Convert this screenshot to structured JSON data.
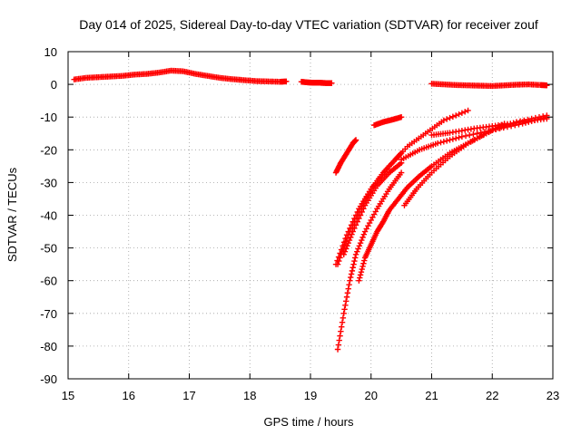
{
  "chart_data": {
    "type": "scatter",
    "title": "Day 014 of 2025, Sidereal Day-to-day VTEC variation (SDTVAR) for receiver zouf",
    "xlabel": "GPS time / hours",
    "ylabel": "SDTVAR / TECUs",
    "xlim": [
      15,
      23
    ],
    "ylim": [
      -90,
      10
    ],
    "xticks": [
      "15",
      "16",
      "17",
      "18",
      "19",
      "20",
      "21",
      "22",
      "23"
    ],
    "yticks": [
      "10",
      "0",
      "-10",
      "-20",
      "-30",
      "-40",
      "-50",
      "-60",
      "-70",
      "-80",
      "-90"
    ],
    "grid": true,
    "marker": "plus",
    "color": "#ff0000",
    "series": [
      {
        "name": "segment-1",
        "x": [
          15.1,
          15.3,
          15.5,
          15.7,
          15.9,
          16.1,
          16.3,
          16.5,
          16.7,
          16.9,
          17.1,
          17.3,
          17.5,
          17.7,
          17.9,
          18.1,
          18.3,
          18.5,
          18.6
        ],
        "y": [
          1.5,
          2.0,
          2.2,
          2.4,
          2.6,
          3.0,
          3.2,
          3.6,
          4.2,
          4.0,
          3.2,
          2.6,
          2.0,
          1.6,
          1.3,
          1.0,
          0.9,
          0.8,
          0.9
        ]
      },
      {
        "name": "segment-2",
        "x": [
          18.85,
          18.95,
          19.05,
          19.15,
          19.25,
          19.35
        ],
        "y": [
          0.8,
          0.6,
          0.5,
          0.5,
          0.4,
          0.4
        ]
      },
      {
        "name": "segment-3",
        "x": [
          21.0,
          21.2,
          21.4,
          21.6,
          21.8,
          22.0,
          22.2,
          22.4,
          22.6,
          22.8,
          22.9
        ],
        "y": [
          0.2,
          0.0,
          -0.2,
          -0.3,
          -0.4,
          -0.5,
          -0.3,
          -0.1,
          0.0,
          -0.2,
          -0.3
        ]
      },
      {
        "name": "arc-a",
        "x": [
          19.42,
          19.5,
          19.6,
          19.7,
          19.75
        ],
        "y": [
          -27,
          -24,
          -21,
          -18,
          -17
        ]
      },
      {
        "name": "arc-b",
        "x": [
          20.05,
          20.2,
          20.35,
          20.5
        ],
        "y": [
          -12.5,
          -11.5,
          -10.8,
          -10
        ]
      },
      {
        "name": "arc-c",
        "x": [
          19.42,
          19.6,
          19.8,
          20.0,
          20.2,
          20.4,
          20.5
        ],
        "y": [
          -55,
          -46,
          -38,
          -32,
          -27,
          -23,
          -21
        ]
      },
      {
        "name": "arc-d",
        "x": [
          19.55,
          19.7,
          19.9,
          20.1,
          20.3,
          20.5
        ],
        "y": [
          -52,
          -45,
          -37,
          -31,
          -27,
          -24
        ]
      },
      {
        "name": "arc-e",
        "x": [
          19.45,
          19.6,
          19.8,
          20.0,
          20.3,
          20.6,
          20.9,
          21.2,
          21.6
        ],
        "y": [
          -55,
          -47,
          -39,
          -32,
          -25,
          -19,
          -15,
          -11,
          -8
        ]
      },
      {
        "name": "arc-f",
        "x": [
          19.45,
          19.55,
          19.65,
          19.75,
          19.9,
          20.1,
          20.3,
          20.5
        ],
        "y": [
          -81,
          -70,
          -60,
          -52,
          -45,
          -38,
          -32,
          -27
        ]
      },
      {
        "name": "arc-g",
        "x": [
          19.8,
          19.9,
          20.0,
          20.1,
          20.2,
          20.3,
          20.45,
          20.6,
          20.8,
          21.0,
          21.3,
          21.6,
          21.9,
          22.2
        ],
        "y": [
          -60,
          -53,
          -49,
          -45,
          -42,
          -38.5,
          -35,
          -31.5,
          -28,
          -25,
          -21,
          -18,
          -15,
          -12
        ]
      },
      {
        "name": "arc-h",
        "x": [
          20.55,
          20.75,
          21.0,
          21.3,
          21.6,
          22.0,
          22.4,
          22.9
        ],
        "y": [
          -37,
          -32,
          -27,
          -22,
          -18,
          -14,
          -11.5,
          -9.5
        ]
      },
      {
        "name": "arc-i",
        "x": [
          20.5,
          20.8,
          21.1,
          21.5,
          22.0,
          22.5,
          22.9
        ],
        "y": [
          -23,
          -20,
          -18,
          -16,
          -14,
          -12,
          -10
        ]
      },
      {
        "name": "arc-j",
        "x": [
          21.0,
          21.3,
          21.7,
          22.1,
          22.5,
          22.9
        ],
        "y": [
          -15.5,
          -14.8,
          -13.5,
          -12.5,
          -11.5,
          -10.5
        ]
      }
    ]
  }
}
